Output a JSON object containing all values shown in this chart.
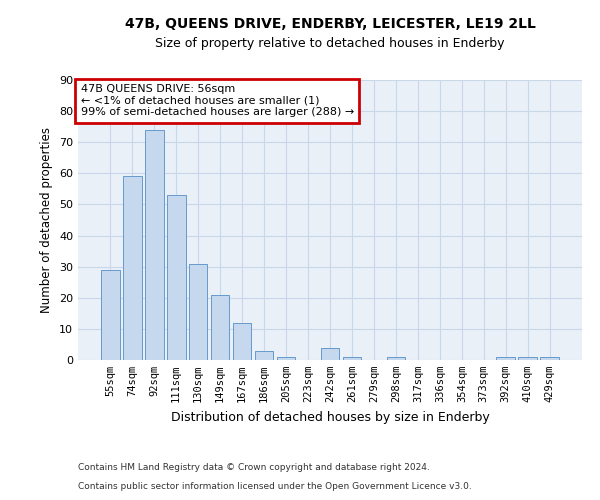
{
  "title": "47B, QUEENS DRIVE, ENDERBY, LEICESTER, LE19 2LL",
  "subtitle": "Size of property relative to detached houses in Enderby",
  "xlabel": "Distribution of detached houses by size in Enderby",
  "ylabel": "Number of detached properties",
  "bar_labels": [
    "55sqm",
    "74sqm",
    "92sqm",
    "111sqm",
    "130sqm",
    "149sqm",
    "167sqm",
    "186sqm",
    "205sqm",
    "223sqm",
    "242sqm",
    "261sqm",
    "279sqm",
    "298sqm",
    "317sqm",
    "336sqm",
    "354sqm",
    "373sqm",
    "392sqm",
    "410sqm",
    "429sqm"
  ],
  "bar_values": [
    29,
    59,
    74,
    53,
    31,
    21,
    12,
    3,
    1,
    0,
    4,
    1,
    0,
    1,
    0,
    0,
    0,
    0,
    1,
    1,
    1
  ],
  "bar_color": "#c5d8ed",
  "bar_edge_color": "#6699cc",
  "annotation_box_text": "47B QUEENS DRIVE: 56sqm\n← <1% of detached houses are smaller (1)\n99% of semi-detached houses are larger (288) →",
  "annotation_box_color": "#ffffff",
  "annotation_box_edge_color": "#cc0000",
  "grid_color": "#c8d8e8",
  "bg_color": "#eaf0f8",
  "ylim": [
    0,
    90
  ],
  "yticks": [
    0,
    10,
    20,
    30,
    40,
    50,
    60,
    70,
    80,
    90
  ],
  "footer_line1": "Contains HM Land Registry data © Crown copyright and database right 2024.",
  "footer_line2": "Contains public sector information licensed under the Open Government Licence v3.0."
}
